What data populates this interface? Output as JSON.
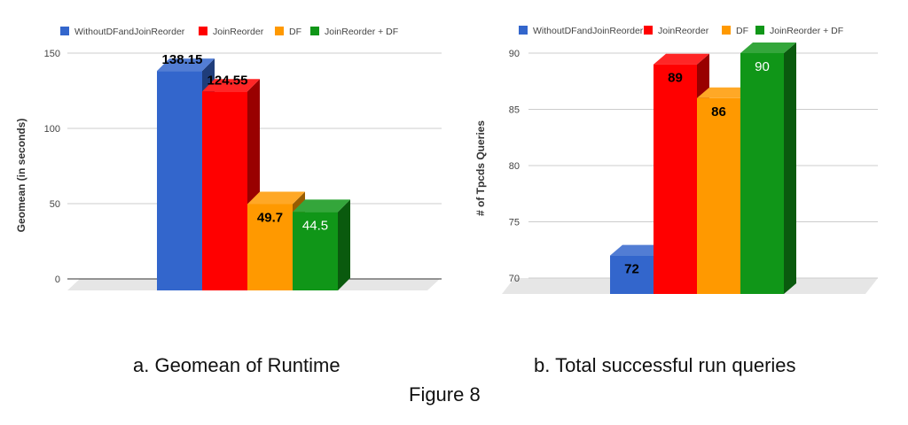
{
  "figure_label": "Figure 8",
  "chart_data": [
    {
      "type": "bar",
      "caption": "a. Geomean of Runtime",
      "ylabel": "Geomean (in seconds)",
      "ylim": [
        0,
        150
      ],
      "yticks": [
        0,
        50,
        100,
        150
      ],
      "legend_position": "top",
      "series": [
        {
          "name": "WithoutDFandJoinReorder",
          "color": "#3366cc",
          "value": 138.15,
          "label": "138.15"
        },
        {
          "name": "JoinReorder",
          "color": "#ff0000",
          "value": 124.55,
          "label": "124.55"
        },
        {
          "name": "DF",
          "color": "#ff9900",
          "value": 49.7,
          "label": "49.7"
        },
        {
          "name": "JoinReorder + DF",
          "color": "#109618",
          "value": 44.5,
          "label": "44.5"
        }
      ]
    },
    {
      "type": "bar",
      "caption": "b. Total successful run queries",
      "ylabel": "# of Tpcds Queries",
      "ylim": [
        70,
        90
      ],
      "yticks": [
        70,
        75,
        80,
        85,
        90
      ],
      "legend_position": "top",
      "series": [
        {
          "name": "WithoutDFandJoinReorder",
          "color": "#3366cc",
          "value": 72,
          "label": "72"
        },
        {
          "name": "JoinReorder",
          "color": "#ff0000",
          "value": 89,
          "label": "89"
        },
        {
          "name": "DF",
          "color": "#ff9900",
          "value": 86,
          "label": "86"
        },
        {
          "name": "JoinReorder + DF",
          "color": "#109618",
          "value": 90,
          "label": "90"
        }
      ]
    }
  ]
}
